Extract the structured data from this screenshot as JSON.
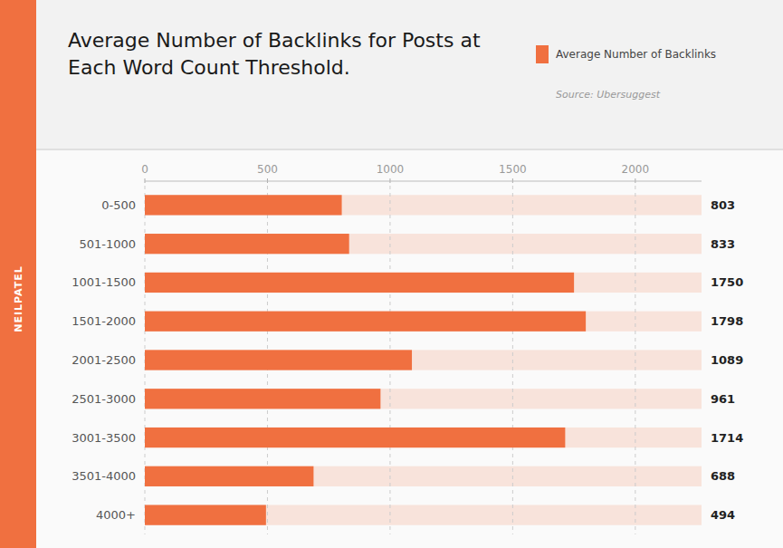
{
  "chart_data": {
    "type": "bar",
    "orientation": "horizontal",
    "title": "Average Number of Backlinks for Posts at Each Word Count Threshold.",
    "categories": [
      "0-500",
      "501-1000",
      "1001-1500",
      "1501-2000",
      "2001-2500",
      "2501-3000",
      "3001-3500",
      "3501-4000",
      "4000+"
    ],
    "series": [
      {
        "name": "Average Number of Backlinks",
        "color": "#F07040",
        "values": [
          803,
          833,
          1750,
          1798,
          1089,
          961,
          1714,
          688,
          494
        ]
      }
    ],
    "xlim": [
      0,
      2270
    ],
    "xticks": [
      0,
      500,
      1000,
      1500,
      2000
    ],
    "grid": true,
    "legend": "upper right",
    "data_labels": true,
    "annotations": [
      "Source: Ubersuggest",
      "NEILPATEL"
    ]
  }
}
